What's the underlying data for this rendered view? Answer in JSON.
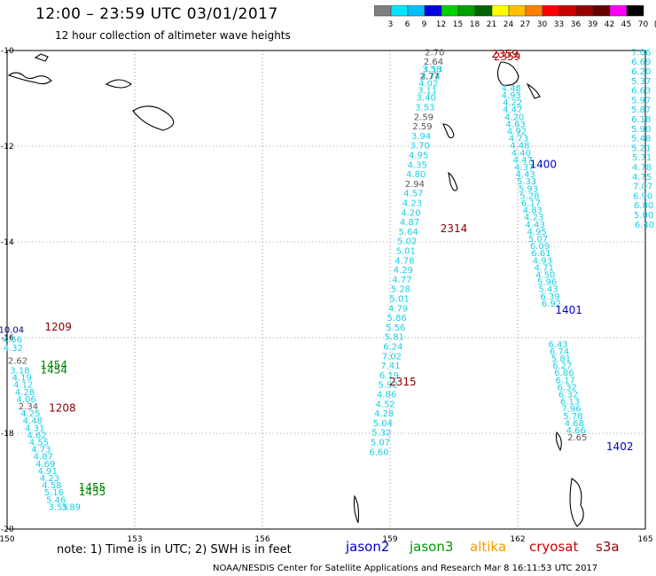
{
  "title": "12:00 – 23:59 UTC 03/01/2017",
  "subtitle": "12 hour collection of altimeter wave heights",
  "colorbar": {
    "labels": [
      "3",
      "6",
      "9",
      "12",
      "15",
      "18",
      "21",
      "24",
      "27",
      "30",
      "33",
      "36",
      "39",
      "42",
      "45",
      "70",
      "(ft)"
    ],
    "colors": [
      "#7f7f7f",
      "#00e5ff",
      "#00bfff",
      "#0000e6",
      "#00d100",
      "#00a000",
      "#006400",
      "#ffff00",
      "#ffc000",
      "#ff7f00",
      "#ff0000",
      "#cc0000",
      "#990000",
      "#660000",
      "#ff00ff",
      "#000000"
    ]
  },
  "note": "note:  1) Time is in UTC;  2) SWH is in feet",
  "satellites": [
    {
      "name": "jason2",
      "color": "#0000cc"
    },
    {
      "name": "jason3",
      "color": "#009900"
    },
    {
      "name": "altika",
      "color": "#ff9900"
    },
    {
      "name": "cryosat",
      "color": "#cc0000"
    },
    {
      "name": "s3a",
      "color": "#990000"
    }
  ],
  "footer": "NOAA/NESDIS Center for Satellite Applications and Research    Mar  8 16:11:53 UTC 2017",
  "chart_data": {
    "type": "scatter",
    "xlim": [
      150,
      165
    ],
    "ylim": [
      -20,
      -10
    ],
    "xticks": [
      "150",
      "153",
      "156",
      "159",
      "162",
      "165"
    ],
    "yticks": [
      "-10",
      "-12",
      "-14",
      "-16",
      "-18",
      "-20"
    ],
    "grid": true,
    "pass_labels": [
      {
        "text": "1209",
        "x": 151.2,
        "y": -15.85,
        "color": "#880000"
      },
      {
        "text": "1454",
        "x": 151.1,
        "y": -16.65,
        "color": "#008800"
      },
      {
        "text": "1454",
        "x": 151.1,
        "y": -16.75,
        "color": "#008800"
      },
      {
        "text": "1208",
        "x": 151.3,
        "y": -17.55,
        "color": "#880000"
      },
      {
        "text": "1455",
        "x": 152.0,
        "y": -19.2,
        "color": "#008800"
      },
      {
        "text": "1455",
        "x": 152.0,
        "y": -19.3,
        "color": "#008800"
      },
      {
        "text": "2314",
        "x": 160.5,
        "y": -13.8,
        "color": "#880000"
      },
      {
        "text": "2315",
        "x": 159.3,
        "y": -17.0,
        "color": "#880000"
      },
      {
        "text": "1400",
        "x": 162.6,
        "y": -12.45,
        "color": "#0000cc"
      },
      {
        "text": "1401",
        "x": 163.2,
        "y": -15.5,
        "color": "#0000cc"
      },
      {
        "text": "1402",
        "x": 164.4,
        "y": -18.35,
        "color": "#0000cc"
      },
      {
        "text": "2359",
        "x": 161.7,
        "y": -10.15,
        "color": "#880000"
      },
      {
        "text": "2359",
        "x": 161.75,
        "y": -10.2,
        "color": "#cc0000"
      }
    ],
    "tracks": [
      {
        "name": "jason2 1400-1402",
        "points": [
          {
            "x": 161.85,
            "y": -10.85,
            "v": 4.48
          },
          {
            "x": 161.85,
            "y": -11.0,
            "v": 4.93
          },
          {
            "x": 161.88,
            "y": -11.15,
            "v": 4.22
          },
          {
            "x": 161.88,
            "y": -11.3,
            "v": 4.47
          },
          {
            "x": 161.92,
            "y": -11.45,
            "v": 4.2
          },
          {
            "x": 161.95,
            "y": -11.6,
            "v": 4.63
          },
          {
            "x": 161.98,
            "y": -11.75,
            "v": 4.92
          },
          {
            "x": 162.02,
            "y": -11.9,
            "v": 4.73
          },
          {
            "x": 162.05,
            "y": -12.05,
            "v": 4.48
          },
          {
            "x": 162.08,
            "y": -12.2,
            "v": 4.4
          },
          {
            "x": 162.12,
            "y": -12.35,
            "v": 4.47
          },
          {
            "x": 162.15,
            "y": -12.5,
            "v": 4.37
          },
          {
            "x": 162.18,
            "y": -12.65,
            "v": 4.43
          },
          {
            "x": 162.21,
            "y": -12.8,
            "v": 5.33
          },
          {
            "x": 162.25,
            "y": -12.95,
            "v": 5.93
          },
          {
            "x": 162.28,
            "y": -13.1,
            "v": 5.28
          },
          {
            "x": 162.31,
            "y": -13.25,
            "v": 6.17
          },
          {
            "x": 162.35,
            "y": -13.4,
            "v": 4.83
          },
          {
            "x": 162.38,
            "y": -13.55,
            "v": 4.23
          },
          {
            "x": 162.41,
            "y": -13.7,
            "v": 4.43
          },
          {
            "x": 162.45,
            "y": -13.85,
            "v": 4.95
          },
          {
            "x": 162.48,
            "y": -14.0,
            "v": 5.07
          },
          {
            "x": 162.52,
            "y": -14.15,
            "v": 6.09
          },
          {
            "x": 162.55,
            "y": -14.3,
            "v": 6.61
          },
          {
            "x": 162.58,
            "y": -14.45,
            "v": 4.93
          },
          {
            "x": 162.62,
            "y": -14.6,
            "v": 4.71
          },
          {
            "x": 162.65,
            "y": -14.75,
            "v": 4.5
          },
          {
            "x": 162.69,
            "y": -14.9,
            "v": 5.96
          },
          {
            "x": 162.72,
            "y": -15.05,
            "v": 5.43
          },
          {
            "x": 162.76,
            "y": -15.2,
            "v": 6.39
          },
          {
            "x": 162.79,
            "y": -15.35,
            "v": 6.92
          },
          {
            "x": 162.95,
            "y": -16.2,
            "v": 6.43
          },
          {
            "x": 162.98,
            "y": -16.35,
            "v": 6.74
          },
          {
            "x": 163.02,
            "y": -16.5,
            "v": 5.81
          },
          {
            "x": 163.05,
            "y": -16.65,
            "v": 6.27
          },
          {
            "x": 163.09,
            "y": -16.8,
            "v": 6.86
          },
          {
            "x": 163.12,
            "y": -16.95,
            "v": 6.17
          },
          {
            "x": 163.16,
            "y": -17.1,
            "v": 6.32
          },
          {
            "x": 163.19,
            "y": -17.25,
            "v": 6.32
          },
          {
            "x": 163.23,
            "y": -17.4,
            "v": 6.13
          },
          {
            "x": 163.26,
            "y": -17.55,
            "v": 7.96
          },
          {
            "x": 163.3,
            "y": -17.7,
            "v": 5.78
          },
          {
            "x": 163.33,
            "y": -17.85,
            "v": 4.68
          },
          {
            "x": 163.37,
            "y": -18.0,
            "v": 4.66
          },
          {
            "x": 163.4,
            "y": -18.15,
            "v": 2.65
          }
        ]
      },
      {
        "name": "cryosat 2314-2315",
        "points": [
          {
            "x": 160.05,
            "y": -10.1,
            "v": 2.7
          },
          {
            "x": 160.02,
            "y": -10.3,
            "v": 2.64
          },
          {
            "x": 160.0,
            "y": -10.45,
            "v": 3.13
          },
          {
            "x": 159.98,
            "y": -10.45,
            "v": 3.58
          },
          {
            "x": 159.95,
            "y": -10.6,
            "v": 4.74
          },
          {
            "x": 159.93,
            "y": -10.6,
            "v": 2.77
          },
          {
            "x": 159.9,
            "y": -10.75,
            "v": 4.02
          },
          {
            "x": 159.88,
            "y": -10.9,
            "v": 3.11
          },
          {
            "x": 159.85,
            "y": -11.05,
            "v": 3.4
          },
          {
            "x": 159.82,
            "y": -11.25,
            "v": 3.53
          },
          {
            "x": 159.79,
            "y": -11.45,
            "v": 2.59
          },
          {
            "x": 159.76,
            "y": -11.65,
            "v": 2.59
          },
          {
            "x": 159.73,
            "y": -11.85,
            "v": 3.94
          },
          {
            "x": 159.7,
            "y": -12.05,
            "v": 3.7
          },
          {
            "x": 159.67,
            "y": -12.25,
            "v": 4.95
          },
          {
            "x": 159.64,
            "y": -12.45,
            "v": 4.35
          },
          {
            "x": 159.61,
            "y": -12.65,
            "v": 4.8
          },
          {
            "x": 159.58,
            "y": -12.85,
            "v": 2.94
          },
          {
            "x": 159.55,
            "y": -13.05,
            "v": 4.57
          },
          {
            "x": 159.52,
            "y": -13.25,
            "v": 4.23
          },
          {
            "x": 159.49,
            "y": -13.45,
            "v": 4.2
          },
          {
            "x": 159.46,
            "y": -13.65,
            "v": 4.87
          },
          {
            "x": 159.43,
            "y": -13.85,
            "v": 5.64
          },
          {
            "x": 159.4,
            "y": -14.05,
            "v": 5.02
          },
          {
            "x": 159.37,
            "y": -14.25,
            "v": 5.01
          },
          {
            "x": 159.34,
            "y": -14.45,
            "v": 4.78
          },
          {
            "x": 159.31,
            "y": -14.65,
            "v": 4.29
          },
          {
            "x": 159.28,
            "y": -14.85,
            "v": 4.77
          },
          {
            "x": 159.25,
            "y": -15.05,
            "v": 5.28
          },
          {
            "x": 159.22,
            "y": -15.25,
            "v": 5.01
          },
          {
            "x": 159.19,
            "y": -15.45,
            "v": 4.79
          },
          {
            "x": 159.16,
            "y": -15.65,
            "v": 5.86
          },
          {
            "x": 159.13,
            "y": -15.85,
            "v": 5.56
          },
          {
            "x": 159.1,
            "y": -16.05,
            "v": 5.81
          },
          {
            "x": 159.07,
            "y": -16.25,
            "v": 6.24
          },
          {
            "x": 159.04,
            "y": -16.45,
            "v": 7.02
          },
          {
            "x": 159.01,
            "y": -16.65,
            "v": 7.41
          },
          {
            "x": 158.98,
            "y": -16.85,
            "v": 6.19
          },
          {
            "x": 158.95,
            "y": -17.05,
            "v": 5.92
          },
          {
            "x": 158.92,
            "y": -17.25,
            "v": 4.86
          },
          {
            "x": 158.89,
            "y": -17.45,
            "v": 4.52
          },
          {
            "x": 158.86,
            "y": -17.65,
            "v": 4.28
          },
          {
            "x": 158.83,
            "y": -17.85,
            "v": 5.04
          },
          {
            "x": 158.8,
            "y": -18.05,
            "v": 5.32
          },
          {
            "x": 158.77,
            "y": -18.25,
            "v": 5.07
          },
          {
            "x": 158.74,
            "y": -18.45,
            "v": 6.6
          }
        ]
      },
      {
        "name": "east edge 165",
        "points": [
          {
            "x": 164.9,
            "y": -10.1,
            "v": 7.06
          },
          {
            "x": 164.9,
            "y": -10.3,
            "v": 6.69
          },
          {
            "x": 164.9,
            "y": -10.5,
            "v": 6.2
          },
          {
            "x": 164.9,
            "y": -10.7,
            "v": 5.37
          },
          {
            "x": 164.9,
            "y": -10.9,
            "v": 6.63
          },
          {
            "x": 164.9,
            "y": -11.1,
            "v": 5.97
          },
          {
            "x": 164.9,
            "y": -11.3,
            "v": 5.87
          },
          {
            "x": 164.9,
            "y": -11.5,
            "v": 6.18
          },
          {
            "x": 164.9,
            "y": -11.7,
            "v": 5.9
          },
          {
            "x": 164.9,
            "y": -11.9,
            "v": 5.48
          },
          {
            "x": 164.9,
            "y": -12.1,
            "v": 5.21
          },
          {
            "x": 164.92,
            "y": -12.3,
            "v": 5.71
          },
          {
            "x": 164.92,
            "y": -12.5,
            "v": 4.78
          },
          {
            "x": 164.92,
            "y": -12.7,
            "v": 4.75
          },
          {
            "x": 164.94,
            "y": -12.9,
            "v": 7.07
          },
          {
            "x": 164.94,
            "y": -13.1,
            "v": 6.9
          },
          {
            "x": 164.96,
            "y": -13.3,
            "v": 6.8
          },
          {
            "x": 164.96,
            "y": -13.5,
            "v": 5.0
          },
          {
            "x": 164.98,
            "y": -13.7,
            "v": 6.4
          }
        ]
      },
      {
        "name": "west 1208-1455",
        "points": [
          {
            "x": 150.1,
            "y": -15.9,
            "v": 10.04
          },
          {
            "x": 150.12,
            "y": -16.1,
            "v": 4.66
          },
          {
            "x": 150.14,
            "y": -16.28,
            "v": 4.32
          },
          {
            "x": 150.25,
            "y": -16.55,
            "v": 2.62
          },
          {
            "x": 150.3,
            "y": -16.75,
            "v": 3.18
          },
          {
            "x": 150.35,
            "y": -16.9,
            "v": 4.19
          },
          {
            "x": 150.38,
            "y": -17.05,
            "v": 4.12
          },
          {
            "x": 150.42,
            "y": -17.2,
            "v": 4.28
          },
          {
            "x": 150.45,
            "y": -17.35,
            "v": 4.06
          },
          {
            "x": 150.5,
            "y": -17.5,
            "v": 2.34
          },
          {
            "x": 150.55,
            "y": -17.65,
            "v": 4.25
          },
          {
            "x": 150.6,
            "y": -17.8,
            "v": 4.48
          },
          {
            "x": 150.65,
            "y": -17.95,
            "v": 4.31
          },
          {
            "x": 150.7,
            "y": -18.1,
            "v": 4.62
          },
          {
            "x": 150.75,
            "y": -18.25,
            "v": 4.55
          },
          {
            "x": 150.8,
            "y": -18.4,
            "v": 4.73
          },
          {
            "x": 150.85,
            "y": -18.55,
            "v": 4.87
          },
          {
            "x": 150.9,
            "y": -18.7,
            "v": 4.69
          },
          {
            "x": 150.95,
            "y": -18.85,
            "v": 4.91
          },
          {
            "x": 151.0,
            "y": -19.0,
            "v": 4.23
          },
          {
            "x": 151.05,
            "y": -19.15,
            "v": 4.58
          },
          {
            "x": 151.1,
            "y": -19.3,
            "v": 5.16
          },
          {
            "x": 151.15,
            "y": -19.45,
            "v": 5.46
          },
          {
            "x": 151.2,
            "y": -19.6,
            "v": 3.55
          },
          {
            "x": 151.5,
            "y": -19.6,
            "v": 3.89
          }
        ]
      }
    ]
  }
}
